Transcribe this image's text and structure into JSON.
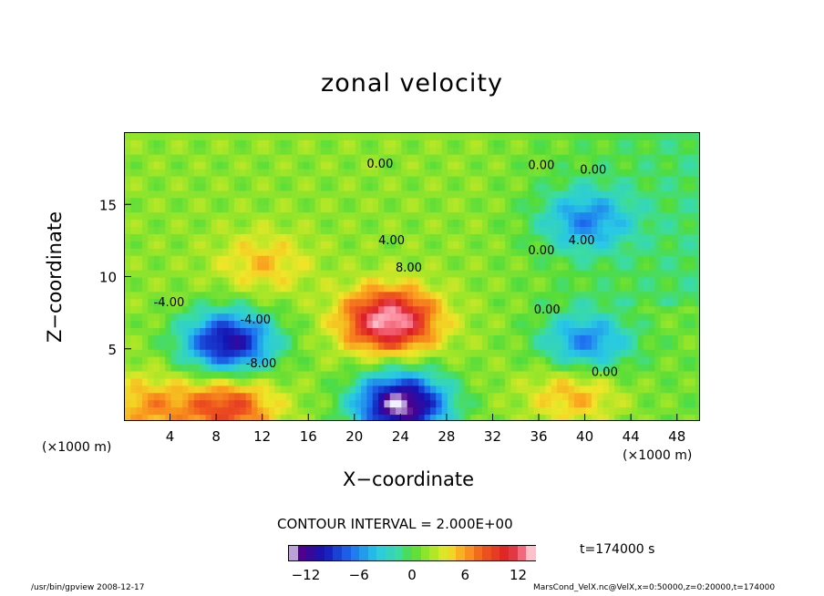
{
  "title": "zonal velocity",
  "chart_data": {
    "type": "heatmap",
    "title": "zonal velocity",
    "xlabel": "X−coordinate",
    "ylabel": "Z−coordinate",
    "x_unit": "(×1000 m)",
    "xlim": [
      0,
      50
    ],
    "ylim": [
      0,
      20
    ],
    "x_ticks": [
      4,
      8,
      12,
      16,
      20,
      24,
      28,
      32,
      36,
      40,
      44,
      48
    ],
    "y_ticks": [
      5,
      10,
      15
    ],
    "contour_interval": "CONTOUR INTERVAL = 2.000E+00",
    "contour_labels": [
      "0.00",
      "0.00",
      "0.00",
      "4.00",
      "8.00",
      "0.00",
      "4.00",
      "0.00",
      "-4.00",
      "-8.00",
      "0.00",
      "-4.00"
    ],
    "colorbar": {
      "range": [
        -14,
        14
      ],
      "ticks": [
        -12,
        -6,
        0,
        6,
        12
      ],
      "tick_labels": [
        "−12",
        "−6",
        "0",
        "6",
        "12"
      ]
    },
    "features": [
      {
        "x": 23,
        "z": 7,
        "value": 14
      },
      {
        "x": 12,
        "z": 11,
        "value": 5
      },
      {
        "x": 9,
        "z": 5.5,
        "value": -11
      },
      {
        "x": 24,
        "z": 1.2,
        "value": -14
      },
      {
        "x": 9,
        "z": 1,
        "value": 9
      },
      {
        "x": 39,
        "z": 2,
        "value": 6
      },
      {
        "x": 40,
        "z": 5.5,
        "value": -6
      },
      {
        "x": 40,
        "z": 14,
        "value": -5
      },
      {
        "x": 2,
        "z": 1,
        "value": 6
      }
    ]
  },
  "labels": {
    "x_unit_left": "(×1000 m)",
    "x_unit_right": "(×1000 m)",
    "time": "t=174000 s",
    "footer_left": "/usr/bin/gpview   2008-12-17",
    "footer_right": "MarsCond_VelX.nc@VelX,x=0:50000,z=0:20000,t=174000"
  }
}
